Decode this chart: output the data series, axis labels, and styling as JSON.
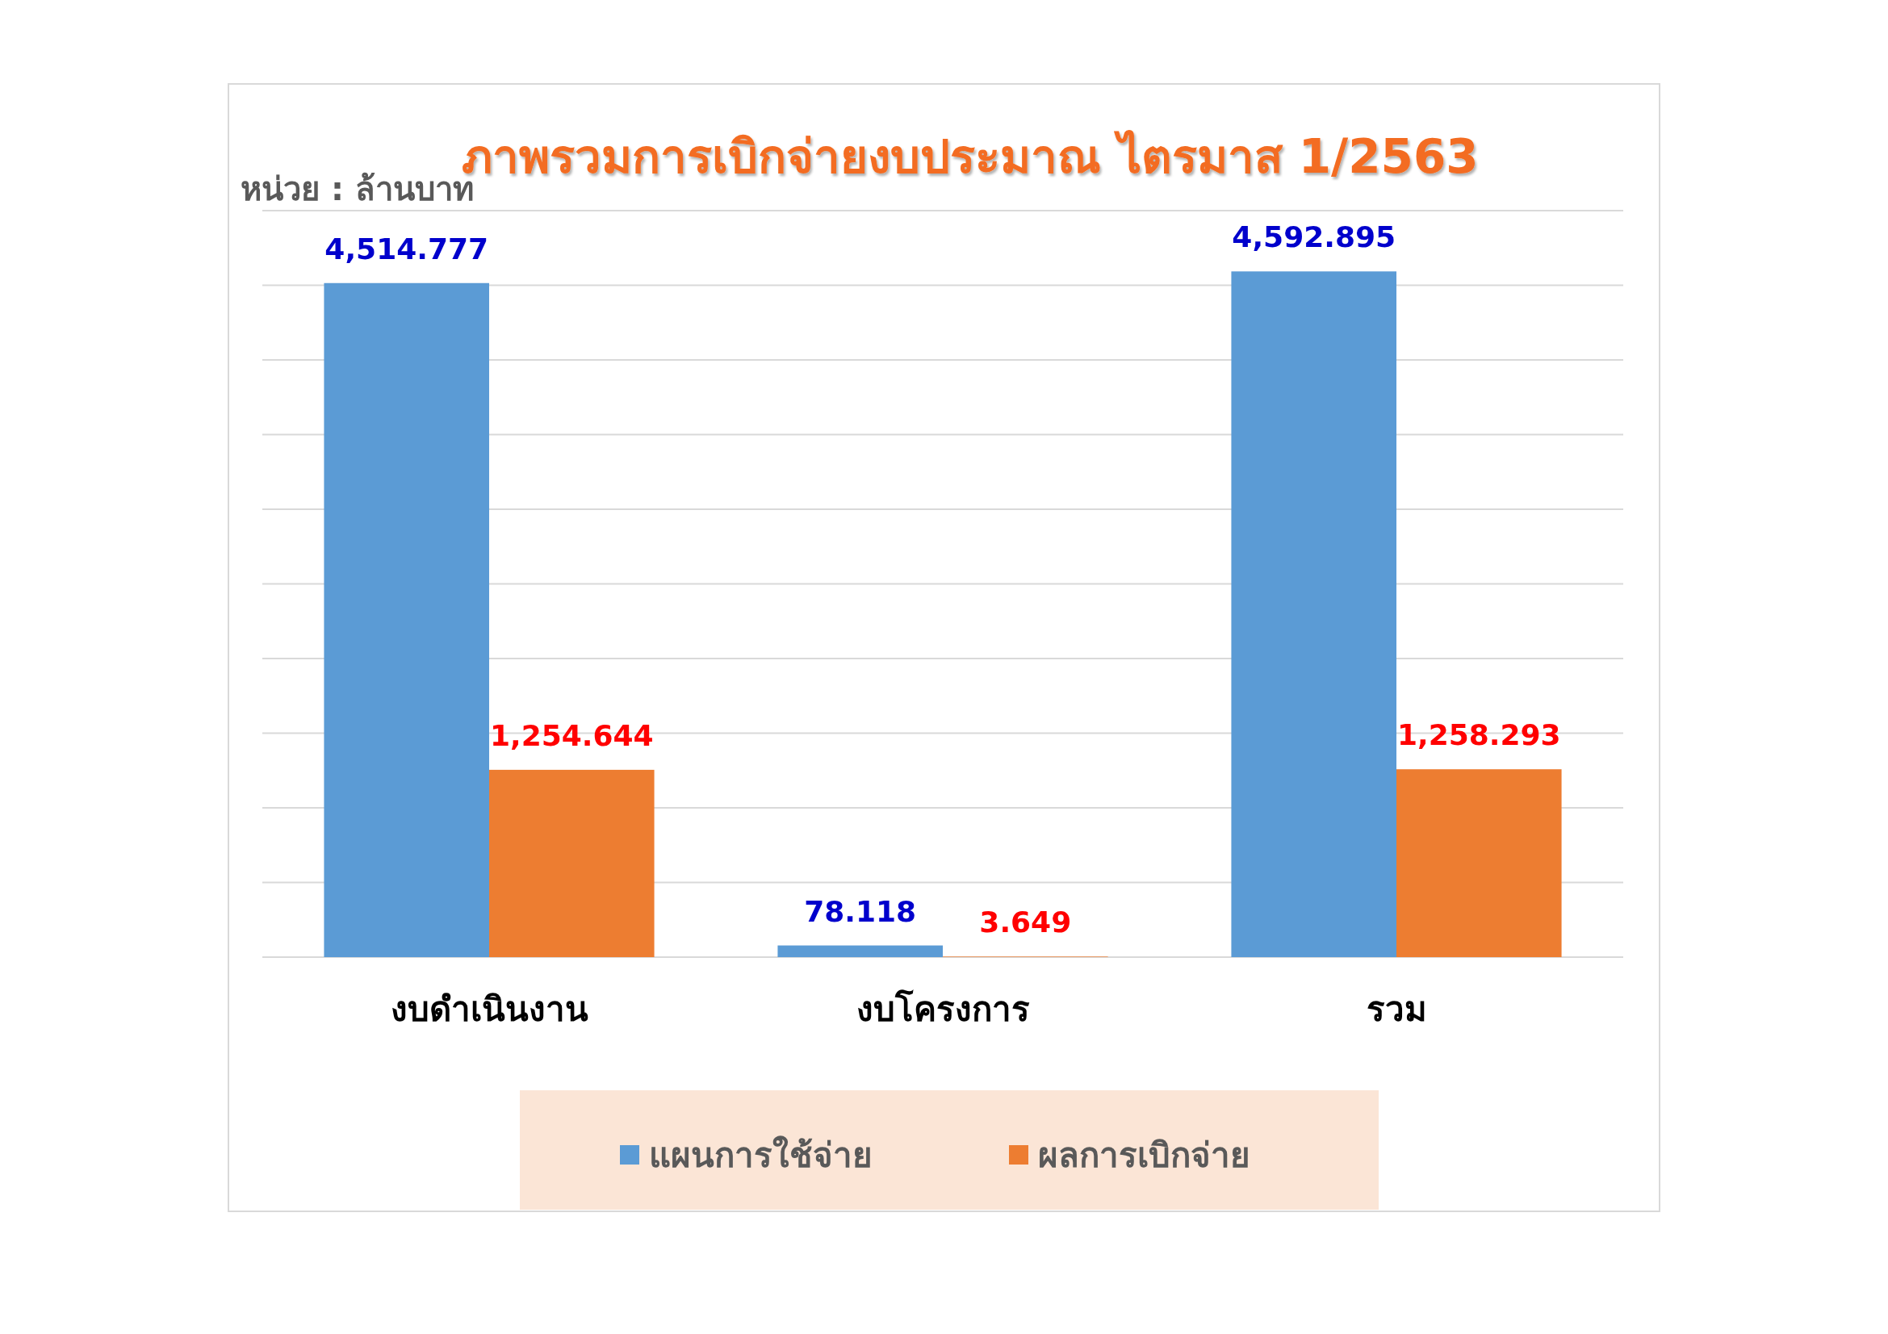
{
  "chart_data": {
    "type": "bar",
    "title": "ภาพรวมการเบิกจ่ายงบประมาณ ไตรมาส 1/2563",
    "ylabel": "หน่วย : ล้านบาท",
    "categories": [
      "งบดำเนินงาน",
      "งบโครงการ",
      "รวม"
    ],
    "series": [
      {
        "name": "แผนการใช้จ่าย",
        "color": "#5b9bd5",
        "values": [
          4514.777,
          78.118,
          4592.895
        ],
        "value_labels": [
          "4,514.777",
          "78.118",
          "4,592.895"
        ]
      },
      {
        "name": "ผลการเบิกจ่าย",
        "color": "#ed7d31",
        "values": [
          1254.644,
          3.649,
          1258.293
        ],
        "value_labels": [
          "1,254.644",
          "3.649",
          "1,258.293"
        ]
      }
    ],
    "ylim": [
      0,
      5000
    ],
    "yticks": [
      {
        "value": 0,
        "label": null
      },
      {
        "value": 500,
        "label": null
      },
      {
        "value": 1000,
        "label": null
      },
      {
        "value": 1500,
        "label": null
      },
      {
        "value": 2000,
        "label": null
      },
      {
        "value": 2500,
        "label": null
      },
      {
        "value": 3000,
        "label": null
      },
      {
        "value": 3500,
        "label": null
      },
      {
        "value": 4000,
        "label": null
      },
      {
        "value": 4500,
        "label": null
      },
      {
        "value": 5000,
        "label": null
      }
    ],
    "grid": "y",
    "legend": "bottom",
    "tick_labels": "x"
  }
}
